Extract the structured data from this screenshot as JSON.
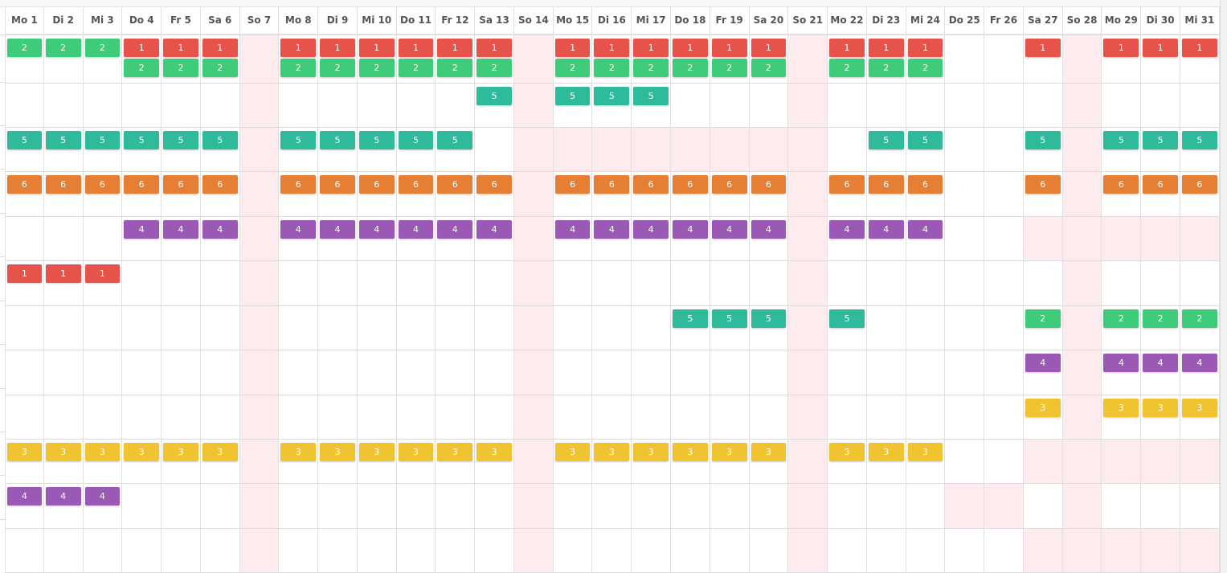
{
  "header": {
    "days": [
      "Mo 1",
      "Di 2",
      "Mi 3",
      "Do 4",
      "Fr 5",
      "Sa 6",
      "So 7",
      "Mo 8",
      "Di 9",
      "Mi 10",
      "Do 11",
      "Fr 12",
      "Sa 13",
      "So 14",
      "Mo 15",
      "Di 16",
      "Mi 17",
      "Do 18",
      "Fr 19",
      "Sa 20",
      "So 21",
      "Mo 22",
      "Di 23",
      "Mi 24",
      "Do 25",
      "Fr 26",
      "Sa 27",
      "So 28",
      "Mo 29",
      "Di 30",
      "Mi 31"
    ]
  },
  "colors": {
    "1": "#e5534b",
    "2": "#3ecc7a",
    "3": "#f0c330",
    "4": "#9b59b6",
    "5": "#2fbb9b",
    "6": "#e67e33",
    "unavailable": "#fdebed"
  },
  "sundays": [
    7,
    14,
    21,
    28
  ],
  "rows": [
    {
      "cells": [
        "2",
        "2",
        "2",
        "1,2",
        "1,2",
        "1,2",
        "",
        "1,2",
        "1,2",
        "1,2",
        "1,2",
        "1,2",
        "1,2",
        "",
        "1,2",
        "1,2",
        "1,2",
        "1,2",
        "1,2",
        "1,2",
        "",
        "1,2",
        "1,2",
        "1,2",
        "",
        "",
        "1",
        "",
        "1",
        "1",
        "1"
      ],
      "pink": []
    },
    {
      "cells": [
        "",
        "",
        "",
        "",
        "",
        "",
        "",
        "",
        "",
        "",
        "",
        "",
        "5",
        "",
        "5",
        "5",
        "5",
        "",
        "",
        "",
        "",
        "",
        "",
        "",
        "",
        "",
        "",
        "",
        "",
        "",
        ""
      ],
      "pink": []
    },
    {
      "cells": [
        "5",
        "5",
        "5",
        "5",
        "5",
        "5",
        "",
        "5",
        "5",
        "5",
        "5",
        "5",
        "",
        "",
        "",
        "",
        "",
        "",
        "",
        "",
        "",
        "",
        "5",
        "5",
        "",
        "",
        "5",
        "",
        "5",
        "5",
        "5"
      ],
      "pink": [
        15,
        16,
        17,
        18,
        19,
        20
      ]
    },
    {
      "cells": [
        "6",
        "6",
        "6",
        "6",
        "6",
        "6",
        "",
        "6",
        "6",
        "6",
        "6",
        "6",
        "6",
        "",
        "6",
        "6",
        "6",
        "6",
        "6",
        "6",
        "",
        "6",
        "6",
        "6",
        "",
        "",
        "6",
        "",
        "6",
        "6",
        "6"
      ],
      "pink": []
    },
    {
      "cells": [
        "",
        "",
        "",
        "4",
        "4",
        "4",
        "",
        "4",
        "4",
        "4",
        "4",
        "4",
        "4",
        "",
        "4",
        "4",
        "4",
        "4",
        "4",
        "4",
        "",
        "4",
        "4",
        "4",
        "",
        "",
        "",
        "",
        "",
        "",
        ""
      ],
      "pink": [
        27,
        29,
        30,
        31
      ]
    },
    {
      "cells": [
        "1",
        "1",
        "1",
        "",
        "",
        "",
        "",
        "",
        "",
        "",
        "",
        "",
        "",
        "",
        "",
        "",
        "",
        "",
        "",
        "",
        "",
        "",
        "",
        "",
        "",
        "",
        "",
        "",
        "",
        "",
        ""
      ],
      "pink": []
    },
    {
      "cells": [
        "",
        "",
        "",
        "",
        "",
        "",
        "",
        "",
        "",
        "",
        "",
        "",
        "",
        "",
        "",
        "",
        "",
        "5",
        "5",
        "5",
        "",
        "5",
        "",
        "",
        "",
        "",
        "2",
        "",
        "2",
        "2",
        "2"
      ],
      "pink": []
    },
    {
      "cells": [
        "",
        "",
        "",
        "",
        "",
        "",
        "",
        "",
        "",
        "",
        "",
        "",
        "",
        "",
        "",
        "",
        "",
        "",
        "",
        "",
        "",
        "",
        "",
        "",
        "",
        "",
        "4",
        "",
        "4",
        "4",
        "4"
      ],
      "pink": []
    },
    {
      "cells": [
        "",
        "",
        "",
        "",
        "",
        "",
        "",
        "",
        "",
        "",
        "",
        "",
        "",
        "",
        "",
        "",
        "",
        "",
        "",
        "",
        "",
        "",
        "",
        "",
        "",
        "",
        "3",
        "",
        "3",
        "3",
        "3"
      ],
      "pink": []
    },
    {
      "cells": [
        "3",
        "3",
        "3",
        "3",
        "3",
        "3",
        "",
        "3",
        "3",
        "3",
        "3",
        "3",
        "3",
        "",
        "3",
        "3",
        "3",
        "3",
        "3",
        "3",
        "",
        "3",
        "3",
        "3",
        "",
        "",
        "",
        "",
        "",
        "",
        ""
      ],
      "pink": [
        27,
        29,
        30,
        31
      ]
    },
    {
      "cells": [
        "4",
        "4",
        "4",
        "",
        "",
        "",
        "",
        "",
        "",
        "",
        "",
        "",
        "",
        "",
        "",
        "",
        "",
        "",
        "",
        "",
        "",
        "",
        "",
        "",
        "",
        "",
        "",
        "",
        "",
        "",
        ""
      ],
      "pink": [
        25,
        26
      ]
    },
    {
      "cells": [
        "",
        "",
        "",
        "",
        "",
        "",
        "",
        "",
        "",
        "",
        "",
        "",
        "",
        "",
        "",
        "",
        "",
        "",
        "",
        "",
        "",
        "",
        "",
        "",
        "",
        "",
        "",
        "",
        "",
        "",
        ""
      ],
      "pink": [
        27,
        29,
        30,
        31
      ]
    }
  ]
}
